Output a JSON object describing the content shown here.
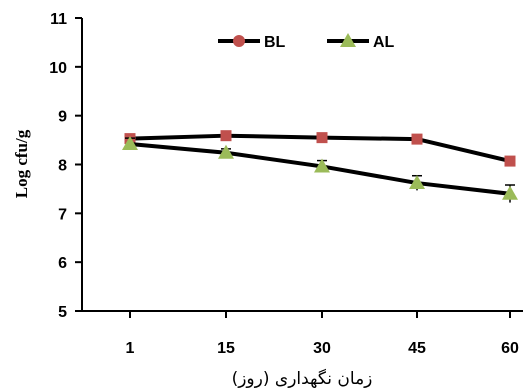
{
  "chart_data": {
    "type": "line",
    "xlabel": "زمان نگهداری (روز)",
    "ylabel": "Log cfu/g",
    "categories": [
      "1",
      "15",
      "30",
      "45",
      "60"
    ],
    "ylim": [
      5,
      11
    ],
    "yticks": [
      5,
      6,
      7,
      8,
      9,
      10,
      11
    ],
    "grid": false,
    "legend_position": "top-right",
    "series": [
      {
        "name": "BL",
        "color": "#c0504d",
        "marker": "square",
        "values": [
          8.53,
          8.59,
          8.55,
          8.52,
          8.07
        ],
        "errors": [
          0.05,
          0.05,
          0.05,
          0.05,
          0.05
        ]
      },
      {
        "name": "AL",
        "color": "#9bbb59",
        "marker": "triangle",
        "values": [
          8.42,
          8.24,
          7.96,
          7.62,
          7.4
        ],
        "errors": [
          0.12,
          0.08,
          0.12,
          0.15,
          0.18
        ]
      }
    ]
  }
}
